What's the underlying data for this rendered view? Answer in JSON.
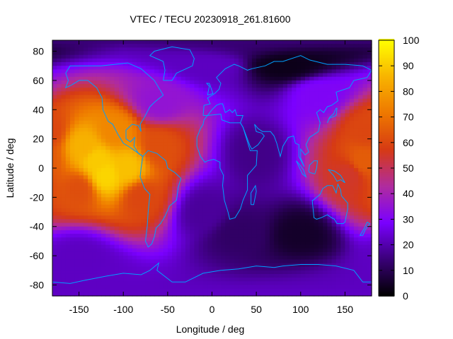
{
  "chart_data": {
    "type": "heatmap",
    "title": "VTEC / TECU 20230918_261.81600",
    "xlabel": "Longitude / deg",
    "ylabel": "Latitude / deg",
    "xlim": [
      -180,
      180
    ],
    "ylim": [
      -87.5,
      87.5
    ],
    "x_ticks": [
      -150,
      -100,
      -50,
      0,
      50,
      100,
      150
    ],
    "y_ticks": [
      -80,
      -60,
      -40,
      -20,
      0,
      20,
      40,
      60,
      80
    ],
    "colorbar": {
      "range": [
        0,
        100
      ],
      "ticks": [
        0,
        10,
        20,
        30,
        40,
        50,
        60,
        70,
        80,
        90,
        100
      ],
      "palette": [
        "#000000",
        "#3a0078",
        "#7a00ff",
        "#b02c9e",
        "#d63a14",
        "#ee7800",
        "#f8b400",
        "#ffff00"
      ]
    },
    "grid_resolution_deg": {
      "lon": 5,
      "lat": 2.5
    },
    "features": [
      {
        "lon": -130,
        "lat": 5,
        "value": 90
      },
      {
        "lon": -120,
        "lat": -5,
        "value": 92
      },
      {
        "lon": -95,
        "lat": 0,
        "value": 88
      },
      {
        "lon": -145,
        "lat": 15,
        "value": 85
      },
      {
        "lon": -110,
        "lat": 25,
        "value": 75
      },
      {
        "lon": -60,
        "lat": 15,
        "value": 62
      },
      {
        "lon": -80,
        "lat": -20,
        "value": 60
      },
      {
        "lon": -150,
        "lat": -15,
        "value": 62
      },
      {
        "lon": 170,
        "lat": 5,
        "value": 65
      },
      {
        "lon": 155,
        "lat": -5,
        "value": 55
      },
      {
        "lon": 175,
        "lat": 25,
        "value": 60
      },
      {
        "lon": -60,
        "lat": 45,
        "value": 35
      },
      {
        "lon": 80,
        "lat": 70,
        "value": 3
      },
      {
        "lon": 100,
        "lat": -45,
        "value": 5
      },
      {
        "lon": 30,
        "lat": -45,
        "value": 12
      },
      {
        "lon": -10,
        "lat": -30,
        "value": 18
      },
      {
        "lon": 0,
        "lat": 70,
        "value": 22
      },
      {
        "lon": 120,
        "lat": 50,
        "value": 30
      },
      {
        "lon": -150,
        "lat": -60,
        "value": 22
      },
      {
        "lon": 50,
        "lat": 10,
        "value": 16
      }
    ],
    "background_value": 25,
    "grid": false,
    "coastlines": true,
    "coastline_color": "#00a0ff"
  }
}
